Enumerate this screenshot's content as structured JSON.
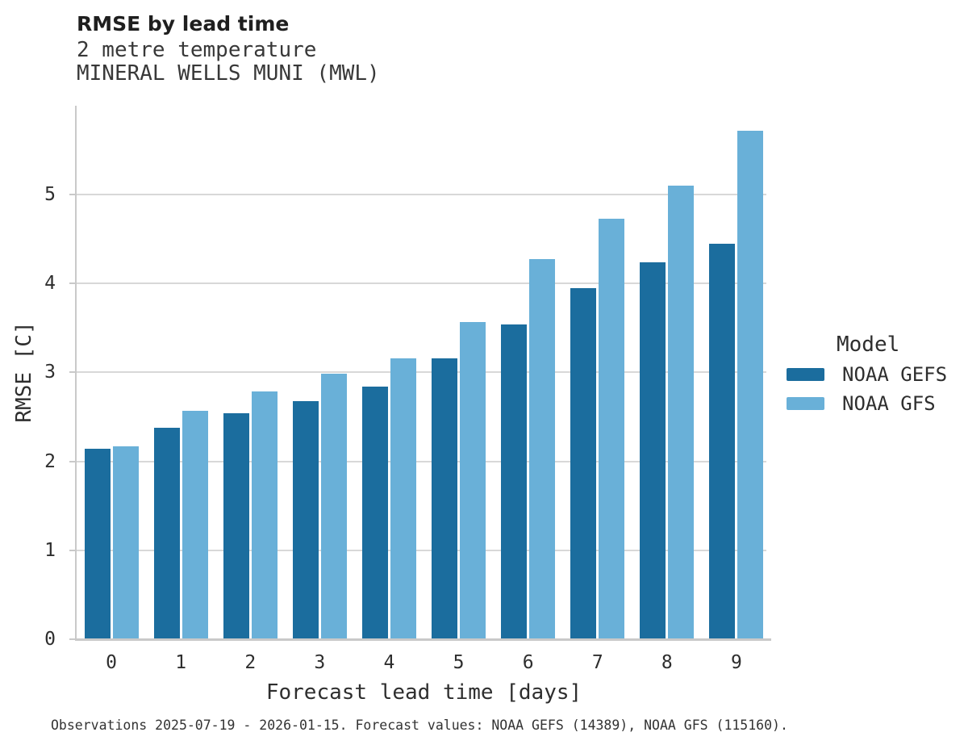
{
  "chart_data": {
    "type": "bar",
    "title": "RMSE by lead time",
    "subtitle": "2 metre temperature",
    "station": "MINERAL WELLS MUNI (MWL)",
    "xlabel": "Forecast lead time [days]",
    "ylabel": "RMSE [C]",
    "categories": [
      "0",
      "1",
      "2",
      "3",
      "4",
      "5",
      "6",
      "7",
      "8",
      "9"
    ],
    "series": [
      {
        "name": "NOAA GEFS",
        "color": "#1b6d9e",
        "values": [
          2.13,
          2.37,
          2.53,
          2.67,
          2.83,
          3.15,
          3.53,
          3.94,
          4.23,
          4.44
        ]
      },
      {
        "name": "NOAA GFS",
        "color": "#69b0d8",
        "values": [
          2.16,
          2.56,
          2.78,
          2.98,
          3.15,
          3.56,
          4.27,
          4.72,
          5.09,
          5.71
        ]
      }
    ],
    "ylim": [
      0,
      6
    ],
    "yticks": [
      "0",
      "1",
      "2",
      "3",
      "4",
      "5"
    ],
    "grid": "horizontal",
    "legend": {
      "title": "Model",
      "position": "right-middle"
    },
    "caption": "Observations 2025-07-19 - 2026-01-15. Forecast values: NOAA GEFS (14389), NOAA GFS (115160).",
    "colors": {
      "grid": "#d8d8d8",
      "axis": "#c9c9c9",
      "text": "#2e2e2e"
    }
  }
}
